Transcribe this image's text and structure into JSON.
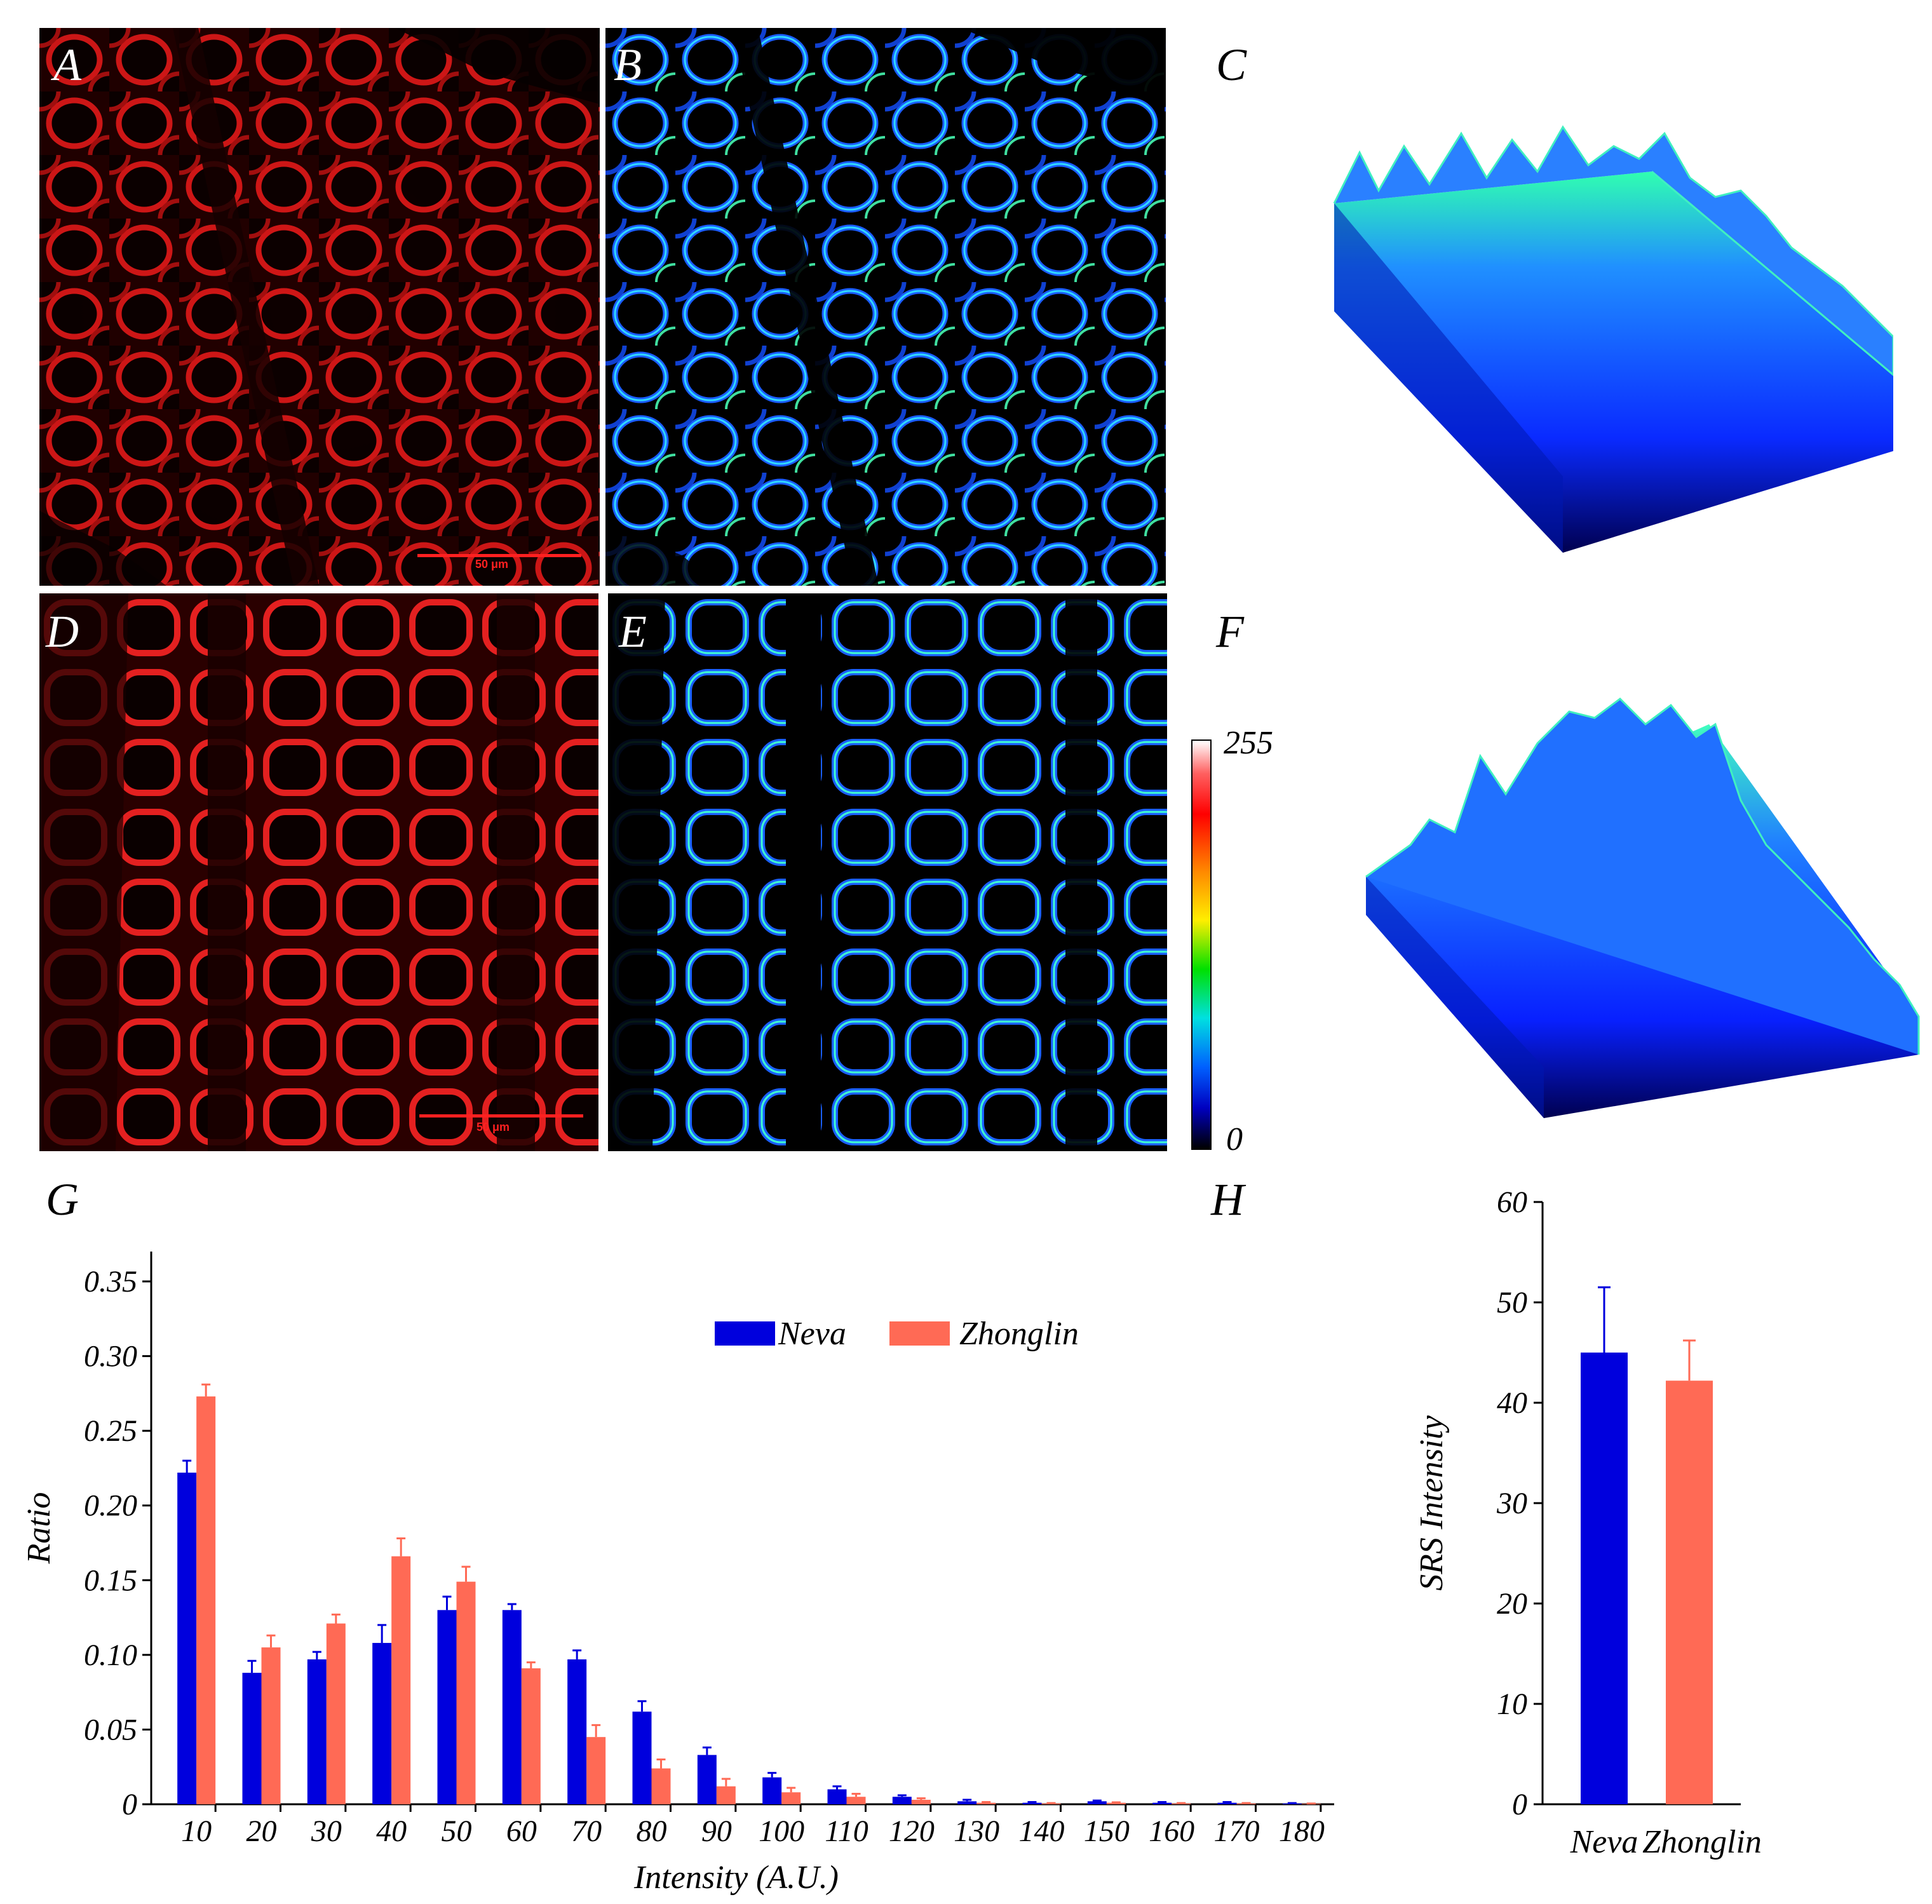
{
  "panels": {
    "A": "A",
    "B": "B",
    "C": "C",
    "D": "D",
    "E": "E",
    "F": "F",
    "G": "G",
    "H": "H"
  },
  "scale_bar_label": "50 μm",
  "colorbar": {
    "max_label": "255",
    "min_label": "0"
  },
  "colors": {
    "neva": "#0000dd",
    "zhonglin": "#ff6a55"
  },
  "chart_data": [
    {
      "id": "G",
      "type": "bar",
      "xlabel": "Intensity (A.U.)",
      "ylabel": "Ratio",
      "ylim": [
        0,
        0.37
      ],
      "yticks": [
        "0",
        "0.05",
        "0.10",
        "0.15",
        "0.20",
        "0.25",
        "0.30",
        "0.35"
      ],
      "categories": [
        "10",
        "20",
        "30",
        "40",
        "50",
        "60",
        "70",
        "80",
        "90",
        "100",
        "110",
        "120",
        "130",
        "140",
        "150",
        "160",
        "170",
        "180"
      ],
      "legend_position": "top-right",
      "series": [
        {
          "name": "Neva",
          "values": [
            0.222,
            0.088,
            0.097,
            0.108,
            0.13,
            0.13,
            0.097,
            0.062,
            0.033,
            0.018,
            0.01,
            0.005,
            0.002,
            0.001,
            0.002,
            0.001,
            0.001,
            0.0005
          ],
          "errors": [
            0.008,
            0.008,
            0.005,
            0.012,
            0.009,
            0.004,
            0.006,
            0.007,
            0.005,
            0.003,
            0.002,
            0.001,
            0.001,
            0.0005,
            0.0005,
            0.0005,
            0.0005,
            0.0003
          ]
        },
        {
          "name": "Zhonglin",
          "values": [
            0.273,
            0.105,
            0.121,
            0.166,
            0.149,
            0.091,
            0.045,
            0.024,
            0.012,
            0.008,
            0.005,
            0.003,
            0.001,
            0.0005,
            0.001,
            0.0005,
            0.0005,
            0.0003
          ],
          "errors": [
            0.008,
            0.008,
            0.006,
            0.012,
            0.01,
            0.004,
            0.008,
            0.006,
            0.005,
            0.003,
            0.002,
            0.001,
            0.0005,
            0.0003,
            0.0003,
            0.0003,
            0.0003,
            0.0002
          ]
        }
      ]
    },
    {
      "id": "H",
      "type": "bar",
      "ylabel": "SRS Intensity",
      "ylim": [
        0,
        60
      ],
      "yticks": [
        "0",
        "10",
        "20",
        "30",
        "40",
        "50",
        "60"
      ],
      "categories": [
        "Neva",
        "Zhonglin"
      ],
      "values": [
        45,
        42.2
      ],
      "errors": [
        6.5,
        4.0
      ]
    }
  ]
}
